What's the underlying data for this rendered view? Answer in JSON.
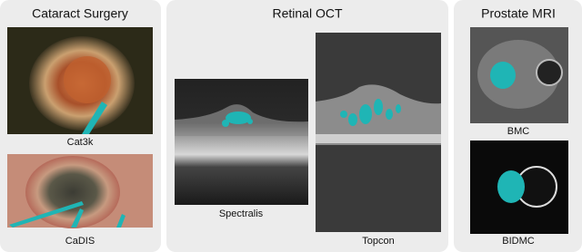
{
  "panels": [
    {
      "title": "Cataract Surgery",
      "images": [
        {
          "caption": "Cat3k"
        },
        {
          "caption": "CaDIS"
        }
      ]
    },
    {
      "title": "Retinal OCT",
      "images": [
        {
          "caption": "Spectralis"
        },
        {
          "caption": "Topcon"
        }
      ]
    },
    {
      "title": "Prostate MRI",
      "images": [
        {
          "caption": "BMC"
        },
        {
          "caption": "BIDMC"
        }
      ]
    }
  ]
}
